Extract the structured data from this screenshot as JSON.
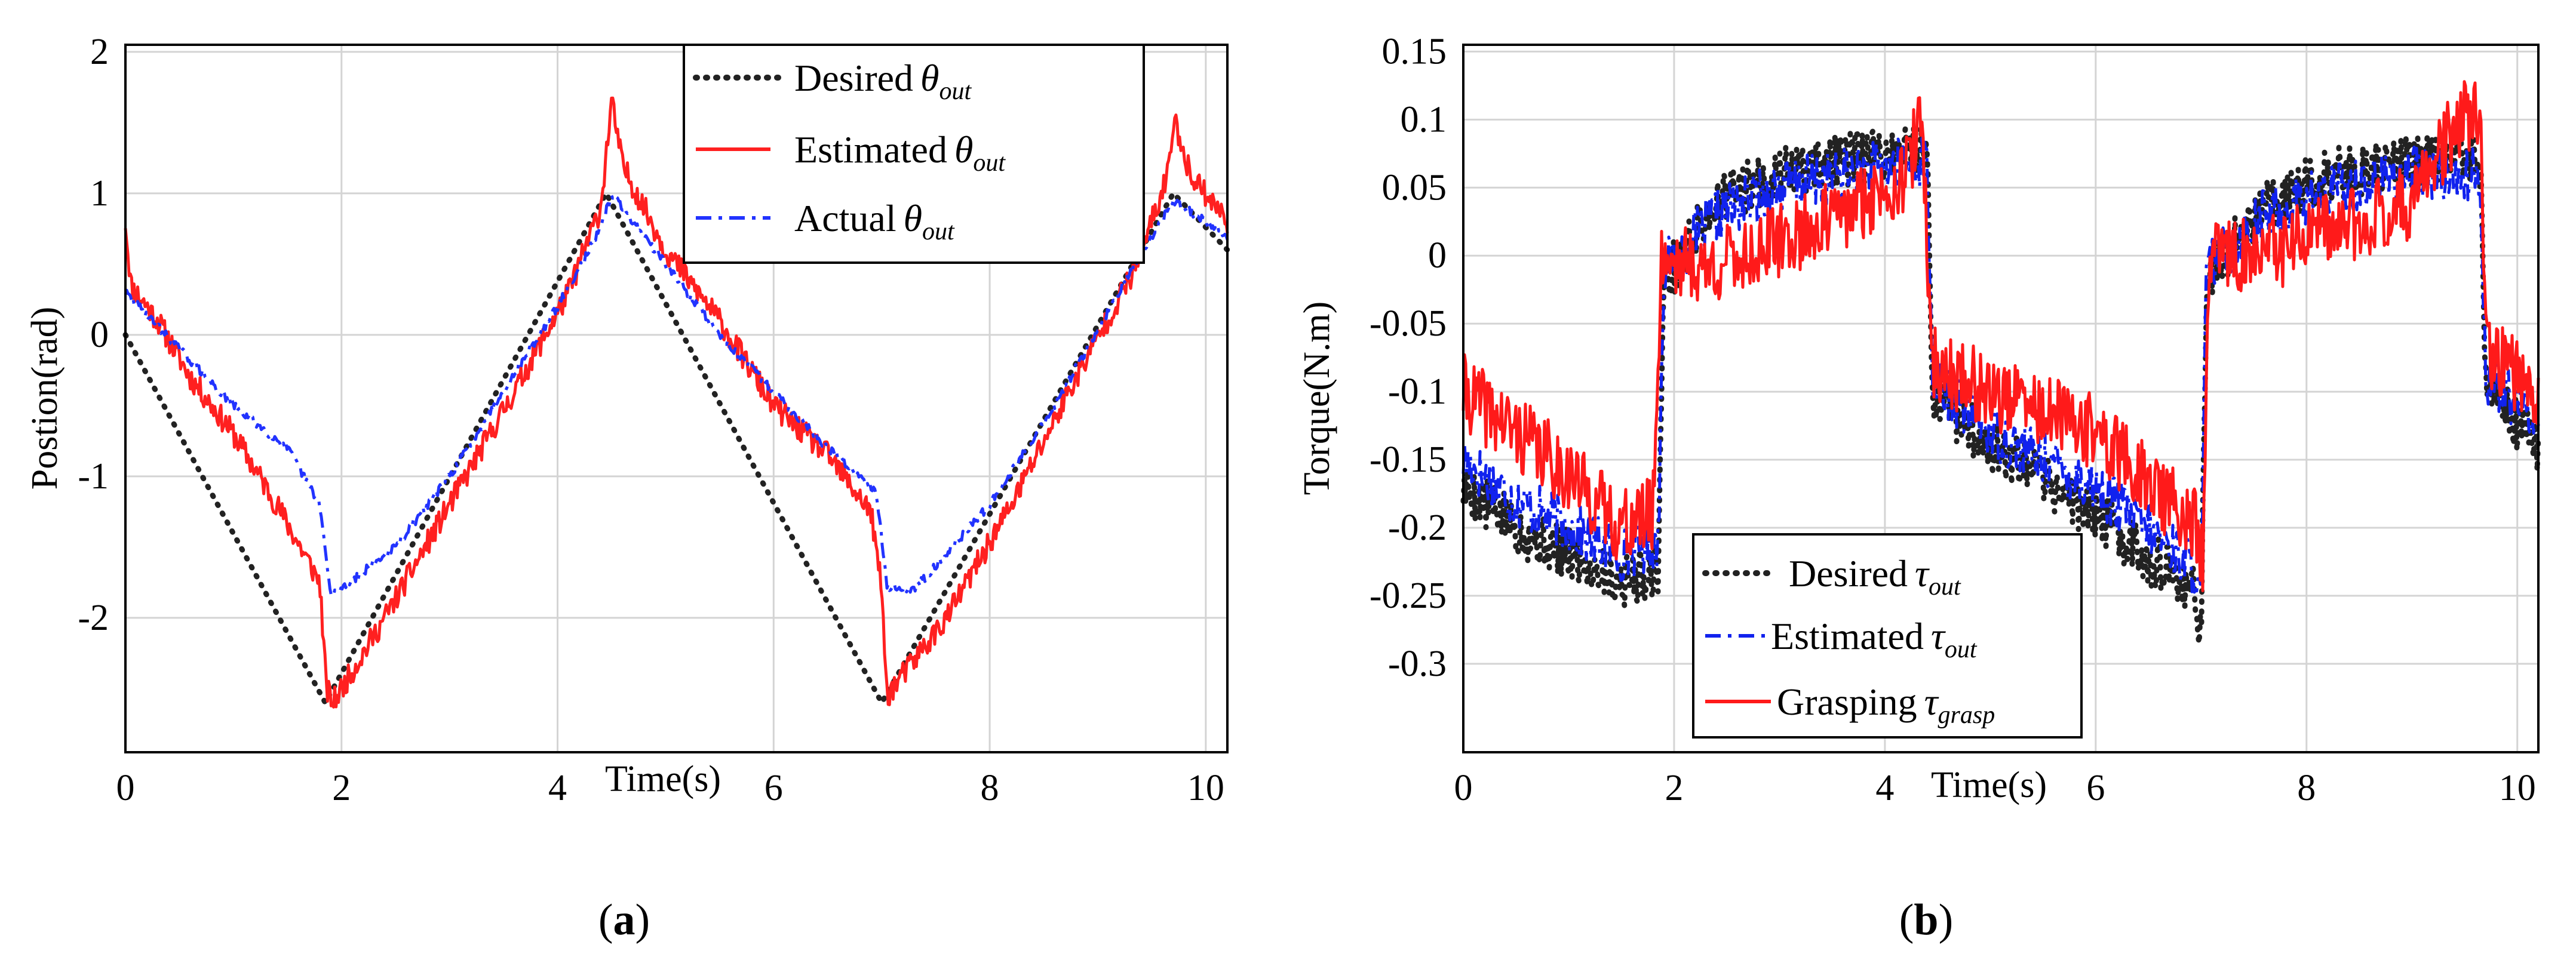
{
  "colors": {
    "desired": "#222222",
    "estimated_a": "#ff2020",
    "actual": "#2233ff",
    "estimated_b": "#1122ee",
    "grasping": "#ff1a1a",
    "grid": "#d4d4d4"
  },
  "chart_data": [
    {
      "type": "line",
      "panel": "(a)",
      "panel_letter": "a",
      "xlabel": "Time(s)",
      "ylabel": "Postion(rad)",
      "xlim": [
        0,
        10.2
      ],
      "ylim": [
        -2.95,
        2.05
      ],
      "xticks": [
        0,
        2,
        4,
        6,
        8,
        10
      ],
      "yticks": [
        -2,
        -1,
        0,
        1,
        2
      ],
      "grid": true,
      "legend_position": "top-right",
      "legend": [
        {
          "prefix": "Desired",
          "sym": "θ",
          "sub": "out"
        },
        {
          "prefix": "Estimated",
          "sym": "θ",
          "sub": "out"
        },
        {
          "prefix": "Actual",
          "sym": "θ",
          "sub": "out"
        }
      ],
      "series": [
        {
          "name": "Desired θout",
          "color": "#222222",
          "style": "dotted",
          "points": [
            [
              0,
              0
            ],
            [
              1.85,
              -2.6
            ],
            [
              4.45,
              1.0
            ],
            [
              7.0,
              -2.6
            ],
            [
              9.7,
              1.0
            ],
            [
              10.2,
              0.6
            ]
          ]
        },
        {
          "name": "Estimated θout",
          "color": "#ff2020",
          "style": "solid",
          "noise": 0.09,
          "seed": 11,
          "points": [
            [
              0,
              0.8
            ],
            [
              0.05,
              0.35
            ],
            [
              0.3,
              0.1
            ],
            [
              0.6,
              -0.3
            ],
            [
              1.0,
              -0.7
            ],
            [
              1.4,
              -1.2
            ],
            [
              1.8,
              -1.75
            ],
            [
              1.86,
              -2.5
            ],
            [
              1.92,
              -2.6
            ],
            [
              2.4,
              -2.0
            ],
            [
              3.0,
              -1.2
            ],
            [
              3.6,
              -0.4
            ],
            [
              4.1,
              0.3
            ],
            [
              4.4,
              0.9
            ],
            [
              4.5,
              1.65
            ],
            [
              4.6,
              1.2
            ],
            [
              5.0,
              0.6
            ],
            [
              5.5,
              0.1
            ],
            [
              6.0,
              -0.5
            ],
            [
              6.5,
              -0.85
            ],
            [
              6.9,
              -1.25
            ],
            [
              7.0,
              -1.8
            ],
            [
              7.05,
              -2.55
            ],
            [
              7.6,
              -2.0
            ],
            [
              8.2,
              -1.2
            ],
            [
              8.8,
              -0.3
            ],
            [
              9.3,
              0.4
            ],
            [
              9.6,
              1.0
            ],
            [
              9.72,
              1.5
            ],
            [
              9.85,
              1.15
            ],
            [
              10.2,
              0.8
            ]
          ]
        },
        {
          "name": "Actual θout",
          "color": "#2233ff",
          "style": "dashdot",
          "noise": 0.03,
          "seed": 29,
          "points": [
            [
              0,
              0.3
            ],
            [
              0.5,
              -0.1
            ],
            [
              1.0,
              -0.5
            ],
            [
              1.5,
              -0.8
            ],
            [
              1.8,
              -1.2
            ],
            [
              1.9,
              -1.85
            ],
            [
              2.5,
              -1.5
            ],
            [
              3.0,
              -1.0
            ],
            [
              3.5,
              -0.4
            ],
            [
              4.0,
              0.2
            ],
            [
              4.4,
              0.75
            ],
            [
              4.5,
              1.0
            ],
            [
              5.0,
              0.5
            ],
            [
              5.5,
              0.0
            ],
            [
              6.0,
              -0.4
            ],
            [
              6.5,
              -0.8
            ],
            [
              6.95,
              -1.1
            ],
            [
              7.05,
              -1.78
            ],
            [
              7.3,
              -1.8
            ],
            [
              8.0,
              -1.2
            ],
            [
              8.6,
              -0.5
            ],
            [
              9.2,
              0.3
            ],
            [
              9.7,
              0.95
            ],
            [
              10.2,
              0.7
            ]
          ]
        }
      ]
    },
    {
      "type": "line",
      "panel": "(b)",
      "panel_letter": "b",
      "xlabel": "Time(s)",
      "ylabel": "Torque(N.m)",
      "xlim": [
        0,
        10.2
      ],
      "ylim": [
        -0.365,
        0.155
      ],
      "xticks": [
        0,
        2,
        4,
        6,
        8,
        10
      ],
      "yticks": [
        0.15,
        0.1,
        0.05,
        0,
        -0.05,
        -0.1,
        -0.15,
        -0.2,
        -0.25,
        -0.3
      ],
      "ytick_labels": [
        "0.15",
        "0.1",
        "0.05",
        "0",
        "-0.05",
        "-0.1",
        "-0.15",
        "-0.2",
        "-0.25",
        "-0.3"
      ],
      "grid": true,
      "legend_position": "bottom-center",
      "legend": [
        {
          "prefix": "Desired",
          "sym": "τ",
          "sub": "out"
        },
        {
          "prefix": "Estimated",
          "sym": "τ",
          "sub": "out"
        },
        {
          "prefix": "Grasping",
          "sym": "τ",
          "sub": "grasp"
        }
      ],
      "series": [
        {
          "name": "Desired τout",
          "color": "#222222",
          "style": "dotted",
          "noise": 0.02,
          "seed": 5,
          "points": [
            [
              0,
              -0.17
            ],
            [
              0.5,
              -0.2
            ],
            [
              1.0,
              -0.22
            ],
            [
              1.5,
              -0.24
            ],
            [
              1.85,
              -0.23
            ],
            [
              1.9,
              -0.02
            ],
            [
              2.4,
              0.04
            ],
            [
              3.0,
              0.06
            ],
            [
              3.6,
              0.07
            ],
            [
              4.4,
              0.08
            ],
            [
              4.45,
              -0.1
            ],
            [
              5.0,
              -0.14
            ],
            [
              6.0,
              -0.19
            ],
            [
              6.95,
              -0.25
            ],
            [
              7.0,
              -0.28
            ],
            [
              7.05,
              -0.02
            ],
            [
              7.6,
              0.04
            ],
            [
              8.3,
              0.06
            ],
            [
              9.0,
              0.07
            ],
            [
              9.65,
              0.07
            ],
            [
              9.7,
              -0.1
            ],
            [
              10.2,
              -0.14
            ]
          ]
        },
        {
          "name": "Estimated τout",
          "color": "#1122ee",
          "style": "dashdot",
          "noise": 0.02,
          "seed": 17,
          "points": [
            [
              0,
              -0.15
            ],
            [
              0.5,
              -0.18
            ],
            [
              1.0,
              -0.2
            ],
            [
              1.5,
              -0.22
            ],
            [
              1.85,
              -0.21
            ],
            [
              1.9,
              -0.01
            ],
            [
              2.4,
              0.03
            ],
            [
              3.0,
              0.05
            ],
            [
              3.6,
              0.06
            ],
            [
              4.4,
              0.07
            ],
            [
              4.45,
              -0.09
            ],
            [
              5.0,
              -0.13
            ],
            [
              6.0,
              -0.17
            ],
            [
              6.95,
              -0.23
            ],
            [
              7.0,
              -0.26
            ],
            [
              7.05,
              -0.01
            ],
            [
              7.6,
              0.03
            ],
            [
              8.3,
              0.05
            ],
            [
              9.0,
              0.06
            ],
            [
              9.65,
              0.06
            ],
            [
              9.7,
              -0.09
            ],
            [
              10.2,
              -0.12
            ]
          ]
        },
        {
          "name": "Grasping τgrasp",
          "color": "#ff1a1a",
          "style": "solid",
          "noise": 0.028,
          "seed": 41,
          "points": [
            [
              0,
              -0.1
            ],
            [
              0.5,
              -0.13
            ],
            [
              1.0,
              -0.16
            ],
            [
              1.5,
              -0.2
            ],
            [
              1.8,
              -0.19
            ],
            [
              1.88,
              0.0
            ],
            [
              2.3,
              -0.01
            ],
            [
              3.0,
              0.01
            ],
            [
              3.6,
              0.03
            ],
            [
              4.2,
              0.06
            ],
            [
              4.35,
              0.1
            ],
            [
              4.45,
              -0.08
            ],
            [
              5.0,
              -0.1
            ],
            [
              6.0,
              -0.13
            ],
            [
              6.95,
              -0.2
            ],
            [
              7.02,
              -0.22
            ],
            [
              7.08,
              0.0
            ],
            [
              7.6,
              0.0
            ],
            [
              8.3,
              0.02
            ],
            [
              9.0,
              0.04
            ],
            [
              9.45,
              0.1
            ],
            [
              9.65,
              0.1
            ],
            [
              9.7,
              -0.07
            ],
            [
              10.2,
              -0.1
            ]
          ]
        }
      ]
    }
  ]
}
